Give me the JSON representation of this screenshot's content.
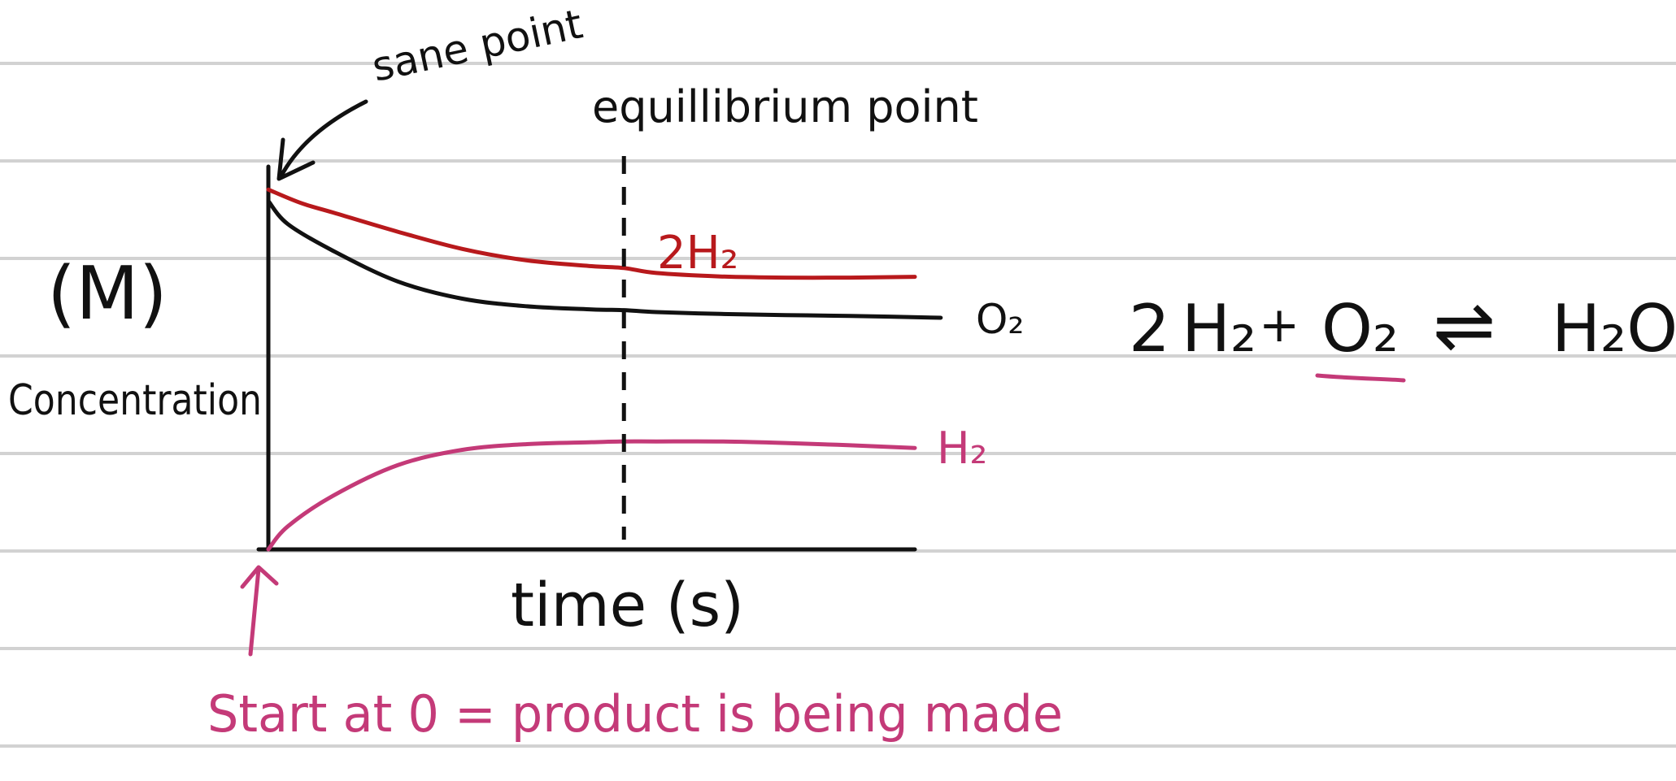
{
  "colors": {
    "ruled_line": "#d2d2d2",
    "ink_black": "#111111",
    "ink_red": "#b8191c",
    "ink_pink": "#c43a78"
  },
  "chart_data": {
    "type": "line",
    "title": "",
    "xlabel": "time (s)",
    "ylabel": "Concentration",
    "ylabel_unit": "(M)",
    "xlim": [
      0,
      10
    ],
    "ylim": [
      0,
      10
    ],
    "grid": false,
    "legend": "end-of-line labels",
    "series": [
      {
        "name": "2H₂",
        "color": "#b8191c",
        "x": [
          0,
          0.5,
          1,
          2,
          3,
          4,
          5,
          5.5,
          6,
          7,
          8,
          9,
          10
        ],
        "y": [
          9.4,
          9.05,
          8.8,
          8.3,
          7.85,
          7.55,
          7.4,
          7.35,
          7.22,
          7.13,
          7.1,
          7.1,
          7.12
        ]
      },
      {
        "name": "O₂",
        "color": "#111111",
        "x": [
          0,
          0.3,
          1,
          2,
          3,
          4,
          5,
          5.5,
          6,
          7,
          8,
          9,
          10.4
        ],
        "y": [
          9.1,
          8.5,
          7.8,
          7.0,
          6.55,
          6.35,
          6.27,
          6.25,
          6.2,
          6.15,
          6.12,
          6.1,
          6.05
        ]
      },
      {
        "name": "H₂",
        "color": "#c43a78",
        "x": [
          0,
          0.3,
          1,
          2,
          3,
          4,
          5,
          5.5,
          6,
          7,
          8,
          9,
          10
        ],
        "y": [
          0,
          0.6,
          1.4,
          2.2,
          2.6,
          2.75,
          2.8,
          2.82,
          2.82,
          2.82,
          2.78,
          2.72,
          2.65
        ]
      }
    ],
    "markers": [
      {
        "x": 5.5,
        "style": "dashed-vertical",
        "label": "equillibrium point"
      }
    ],
    "annotations": {
      "same_point": "sane point",
      "start_note": "Start at 0 = product is being made",
      "equation": {
        "coef": "2",
        "reactant1": "H₂",
        "plus": "+",
        "reactant2": "O₂",
        "arrow": "⇌",
        "product": "H₂O"
      }
    }
  }
}
